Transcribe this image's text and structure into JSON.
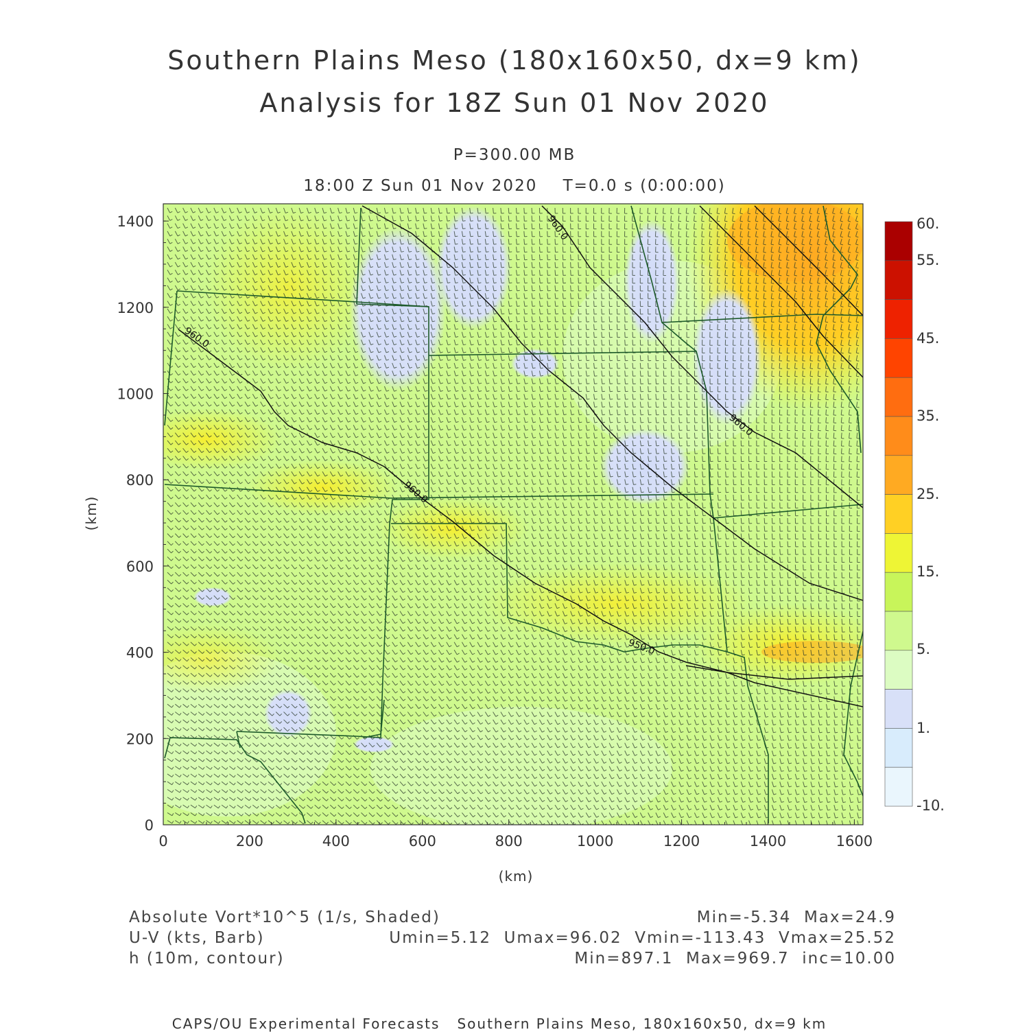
{
  "header": {
    "title_line1": "Southern Plains Meso (180x160x50, dx=9 km)",
    "title_line2": "Analysis for 18Z Sun 01 Nov 2020",
    "level": "P=300.00 MB",
    "time": "18:00 Z Sun 01 Nov 2020    T=0.0 s (0:00:00)"
  },
  "axes": {
    "x_ticks": [
      "0",
      "200",
      "400",
      "600",
      "800",
      "1000",
      "1200",
      "1400",
      "1600"
    ],
    "y_ticks": [
      "0",
      "200",
      "400",
      "600",
      "800",
      "1000",
      "1200",
      "1400"
    ],
    "x_label": "(km)",
    "y_label": "(km)",
    "x_range_km": [
      0,
      1620
    ],
    "y_range_km": [
      0,
      1440
    ]
  },
  "colorbar": {
    "labels": [
      "60.",
      "55.",
      "45.",
      "35.",
      "25.",
      "15.",
      "5.",
      "1.",
      "-10."
    ],
    "colors": [
      "#aa0000",
      "#cc1100",
      "#ee2200",
      "#ff4400",
      "#ff6d10",
      "#ff8c1a",
      "#ffaa22",
      "#ffd024",
      "#eef535",
      "#c8f55a",
      "#cff98e",
      "#dcfcc2",
      "#d8e0f8",
      "#d8ecfc",
      "#eaf6fd"
    ]
  },
  "contours": {
    "labels": [
      "960.0",
      "960.0",
      "960.0",
      "960.0",
      "950.0"
    ]
  },
  "legend": {
    "line1_left": "Absolute Vort*10^5 (1/s, Shaded)",
    "line1_right": "Min=-5.34  Max=24.9",
    "line2_left": "U-V (kts, Barb)",
    "line2_right": "Umin=5.12  Umax=96.02  Vmin=-113.43  Vmax=25.52",
    "line3_left": "h (10m, contour)",
    "line3_right": "Min=897.1  Max=969.7  inc=10.00"
  },
  "footer": "CAPS/OU Experimental Forecasts   Southern Plains Meso, 180x160x50, dx=9 km"
}
